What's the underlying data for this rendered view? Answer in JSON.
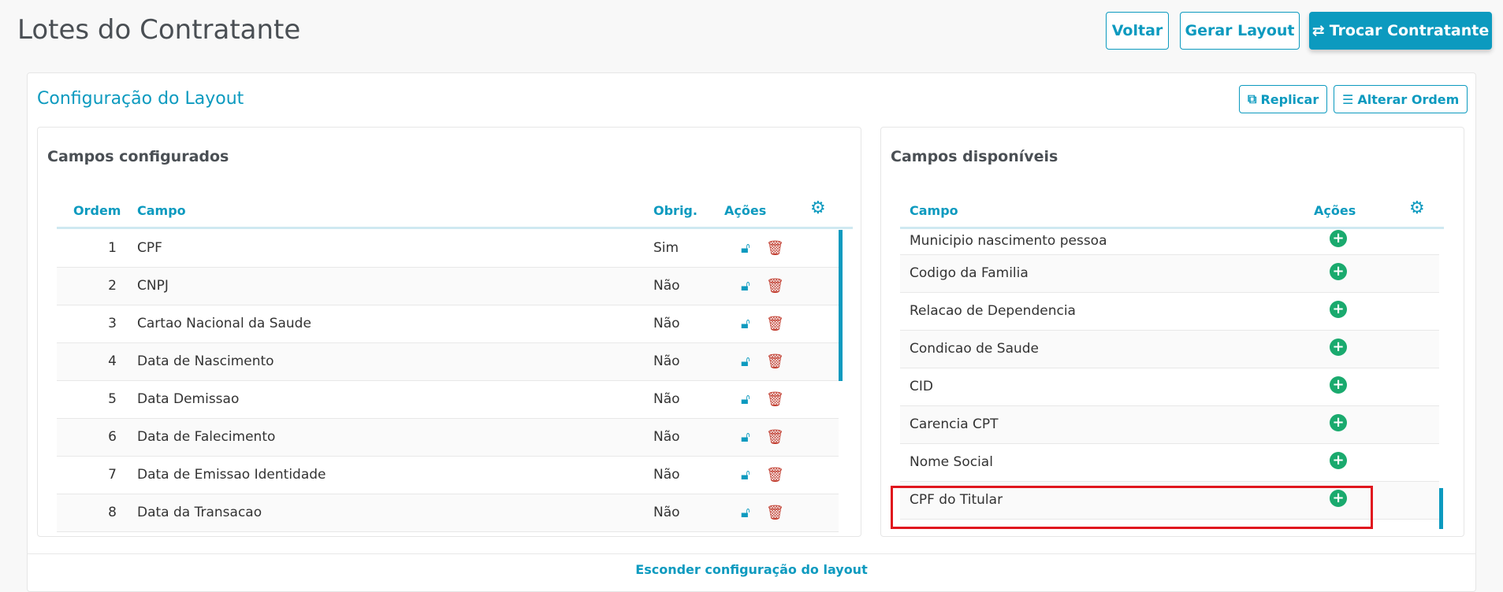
{
  "header": {
    "title": "Lotes do Contratante",
    "buttons": {
      "back": "Voltar",
      "generate": "Gerar Layout",
      "switch": "Trocar Contratante"
    }
  },
  "config": {
    "title": "Configuração do Layout",
    "replicate": "Replicar",
    "reorder": "Alterar Ordem",
    "hide_link": "Esconder configuração do layout"
  },
  "configured": {
    "title": "Campos configurados",
    "columns": [
      "Ordem",
      "Campo",
      "Obrig.",
      "Ações"
    ],
    "rows": [
      {
        "order": "1",
        "field": "CPF",
        "required": "Sim"
      },
      {
        "order": "2",
        "field": "CNPJ",
        "required": "Não"
      },
      {
        "order": "3",
        "field": "Cartao Nacional da Saude",
        "required": "Não"
      },
      {
        "order": "4",
        "field": "Data de Nascimento",
        "required": "Não"
      },
      {
        "order": "5",
        "field": "Data Demissao",
        "required": "Não"
      },
      {
        "order": "6",
        "field": "Data de Falecimento",
        "required": "Não"
      },
      {
        "order": "7",
        "field": "Data de Emissao Identidade",
        "required": "Não"
      },
      {
        "order": "8",
        "field": "Data da Transacao",
        "required": "Não"
      }
    ]
  },
  "available": {
    "title": "Campos disponíveis",
    "columns": [
      "Campo",
      "Ações"
    ],
    "rows": [
      "Municipio nascimento pessoa",
      "Codigo da Familia",
      "Relacao de Dependencia",
      "Condicao de Saude",
      "CID",
      "Carencia CPT",
      "Nome Social",
      "CPF do Titular"
    ],
    "highlighted": "CPF do Titular"
  },
  "colors": {
    "accent": "#0c9abf",
    "delete": "#c0392b",
    "add": "#1aaa6e",
    "highlight": "#e0161e"
  }
}
